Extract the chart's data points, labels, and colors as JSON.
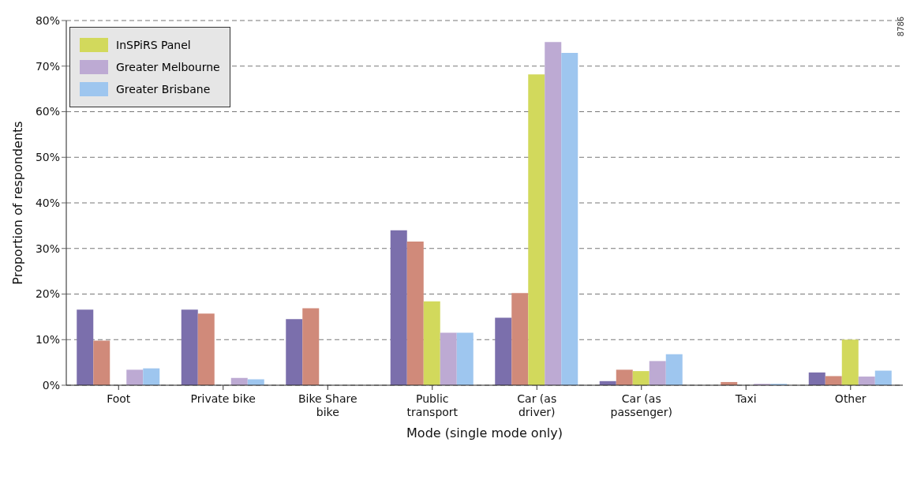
{
  "chart_data": {
    "type": "bar",
    "xlabel": "Mode (single mode only)",
    "ylabel": "Proportion of respondents",
    "categories": [
      "Foot",
      "Private bike",
      "Bike Share bike",
      "Public transport",
      "Car (as driver)",
      "Car (as passenger)",
      "Taxi",
      "Other"
    ],
    "series": [
      {
        "color": "#7b6fac",
        "values": [
          16.6,
          16.6,
          14.5,
          34.0,
          14.8,
          0.9,
          null,
          2.8
        ]
      },
      {
        "color": "#d08a7a",
        "values": [
          9.8,
          15.7,
          16.9,
          31.5,
          20.2,
          3.4,
          0.7,
          2.0
        ]
      },
      {
        "name": "InSPiRS Panel",
        "color": "#d2d95c",
        "values": [
          null,
          null,
          null,
          18.4,
          68.2,
          3.1,
          null,
          10.0
        ]
      },
      {
        "name": "Greater Melbourne",
        "color": "#bdaad3",
        "values": [
          3.4,
          1.6,
          null,
          11.5,
          75.3,
          5.3,
          0.3,
          1.9
        ]
      },
      {
        "name": "Greater Brisbane",
        "color": "#9ec6ef",
        "values": [
          3.7,
          1.3,
          null,
          11.5,
          72.9,
          6.8,
          0.3,
          3.2
        ]
      }
    ],
    "ylim": [
      0,
      80
    ],
    "yticks": [
      {
        "value": 0,
        "label": "0%"
      },
      {
        "value": 10,
        "label": "10%"
      },
      {
        "value": 20,
        "label": "20%"
      },
      {
        "value": 30,
        "label": "30%"
      },
      {
        "value": 40,
        "label": "40%"
      },
      {
        "value": 50,
        "label": "50%"
      },
      {
        "value": 60,
        "label": "60%"
      },
      {
        "value": 70,
        "label": "70%"
      },
      {
        "value": 80,
        "label": "80%"
      }
    ],
    "grid": "y",
    "line_style": "dashed",
    "legend": "top left",
    "annotations": [
      "8786"
    ]
  }
}
